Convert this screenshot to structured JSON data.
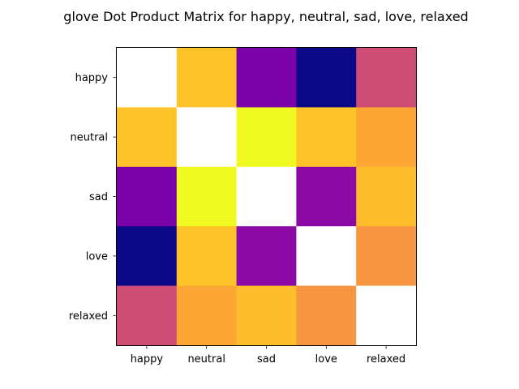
{
  "chart_data": {
    "type": "heatmap",
    "title": "glove Dot Product Matrix for happy, neutral, sad, love, relaxed",
    "x_categories": [
      "happy",
      "neutral",
      "sad",
      "love",
      "relaxed"
    ],
    "y_categories": [
      "happy",
      "neutral",
      "sad",
      "love",
      "relaxed"
    ],
    "colormap": "plasma",
    "diagonal_color": "#ffffff",
    "cell_colors": [
      [
        "#ffffff",
        "#fdc328",
        "#7b02a8",
        "#0d0887",
        "#cf4c74"
      ],
      [
        "#fdc328",
        "#ffffff",
        "#f0f921",
        "#fdc328",
        "#fca636"
      ],
      [
        "#7b02a8",
        "#f0f921",
        "#ffffff",
        "#8b0aa5",
        "#febd2a"
      ],
      [
        "#0d0887",
        "#fdc328",
        "#8b0aa5",
        "#ffffff",
        "#f89540"
      ],
      [
        "#cf4c74",
        "#fca636",
        "#febd2a",
        "#f89540",
        "#ffffff"
      ]
    ]
  }
}
